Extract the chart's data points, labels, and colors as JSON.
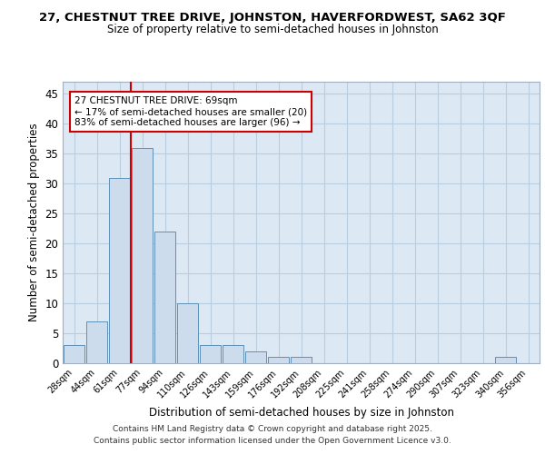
{
  "title1": "27, CHESTNUT TREE DRIVE, JOHNSTON, HAVERFORDWEST, SA62 3QF",
  "title2": "Size of property relative to semi-detached houses in Johnston",
  "xlabel": "Distribution of semi-detached houses by size in Johnston",
  "ylabel": "Number of semi-detached properties",
  "bar_labels": [
    "28sqm",
    "44sqm",
    "61sqm",
    "77sqm",
    "94sqm",
    "110sqm",
    "126sqm",
    "143sqm",
    "159sqm",
    "176sqm",
    "192sqm",
    "208sqm",
    "225sqm",
    "241sqm",
    "258sqm",
    "274sqm",
    "290sqm",
    "307sqm",
    "323sqm",
    "340sqm",
    "356sqm"
  ],
  "bar_values": [
    3,
    7,
    31,
    36,
    22,
    10,
    3,
    3,
    2,
    1,
    1,
    0,
    0,
    0,
    0,
    0,
    0,
    0,
    0,
    1,
    0
  ],
  "bar_color": "#ccdcec",
  "bar_edgecolor": "#6090b8",
  "red_line_color": "#cc0000",
  "annotation_line1": "27 CHESTNUT TREE DRIVE: 69sqm",
  "annotation_line2": "← 17% of semi-detached houses are smaller (20)",
  "annotation_line3": "83% of semi-detached houses are larger (96) →",
  "annotation_box_edgecolor": "#cc0000",
  "ylim": [
    0,
    47
  ],
  "yticks": [
    0,
    5,
    10,
    15,
    20,
    25,
    30,
    35,
    40,
    45
  ],
  "bg_color": "#dce8f4",
  "grid_color": "#b8cede",
  "footer1": "Contains HM Land Registry data © Crown copyright and database right 2025.",
  "footer2": "Contains public sector information licensed under the Open Government Licence v3.0.",
  "title_fontsize": 9.5,
  "subtitle_fontsize": 8.5,
  "fig_bg": "#ffffff"
}
